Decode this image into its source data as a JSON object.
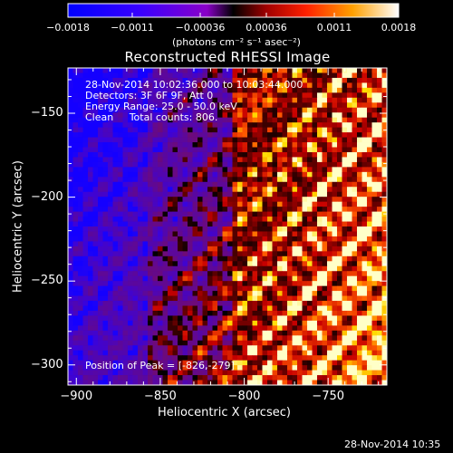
{
  "chart_data": {
    "type": "heatmap",
    "title": "Reconstructed RHESSI Image",
    "xlabel": "Heliocentric X (arcsec)",
    "ylabel": "Heliocentric Y (arcsec)",
    "xlim": [
      -905,
      -715
    ],
    "ylim": [
      -312,
      -123
    ],
    "x_ticks": [
      -900,
      -850,
      -800,
      -750
    ],
    "x_tick_labels": [
      "−900",
      "−850",
      "−800",
      "−750"
    ],
    "y_ticks": [
      -150,
      -200,
      -250,
      -300
    ],
    "y_tick_labels": [
      "−150",
      "−200",
      "−250",
      "−300"
    ],
    "colorbar": {
      "range": [
        -0.0018,
        0.0018
      ],
      "ticks": [
        -0.0018,
        -0.0011,
        -0.00036,
        0.00036,
        0.0011,
        0.0018
      ],
      "tick_labels": [
        "−0.0018",
        "−0.0011",
        "−0.00036",
        "0.00036",
        "0.0011",
        "0.0018"
      ],
      "units_label": "(photons cm⁻² s⁻¹ asec⁻²)"
    },
    "annotations": {
      "time_range": "28-Nov-2014 10:02:36.000 to 10:03:44.000",
      "detectors": "Detectors: 3F 6F 9F, Att 0",
      "energy": "Energy Range: 25.0 - 50.0 keV",
      "clean": "Clean     Total counts: 806.",
      "peak": "Position of Peak = [-826,-279]"
    },
    "peak_position": [
      -826,
      -279
    ]
  },
  "footer": {
    "timestamp": "28-Nov-2014 10:35"
  }
}
